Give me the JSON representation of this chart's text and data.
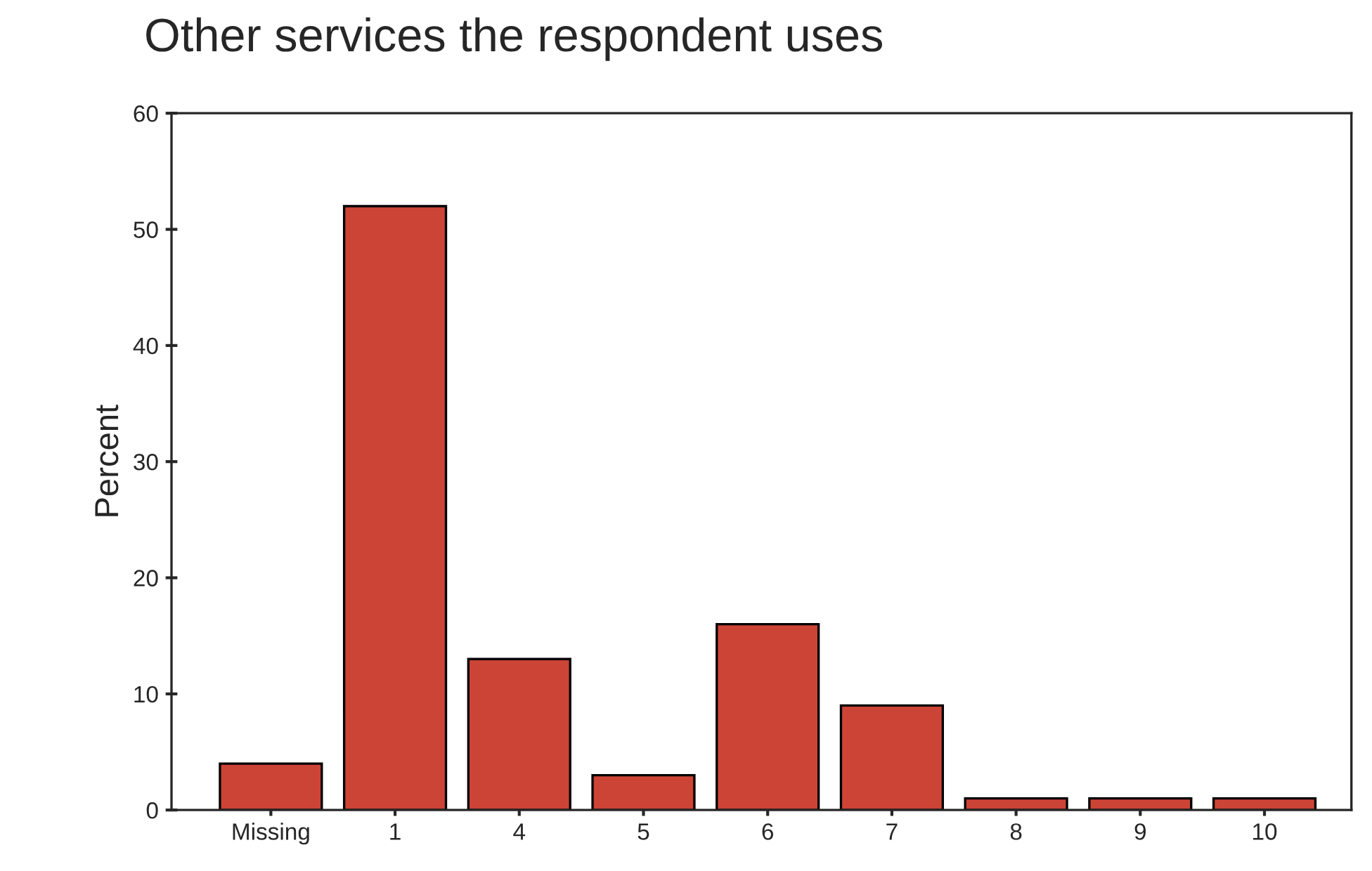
{
  "chart_data": {
    "type": "bar",
    "title": "Other services the respondent uses",
    "ylabel": "Percent",
    "categories": [
      "Missing",
      "1",
      "4",
      "5",
      "6",
      "7",
      "8",
      "9",
      "10"
    ],
    "values": [
      4,
      52,
      13,
      3,
      16,
      9,
      1,
      1,
      1
    ],
    "color": "#cc4436",
    "ylim": [
      0,
      60
    ],
    "yticks": [
      0,
      10,
      20,
      30,
      40,
      50,
      60
    ],
    "grid": false
  }
}
